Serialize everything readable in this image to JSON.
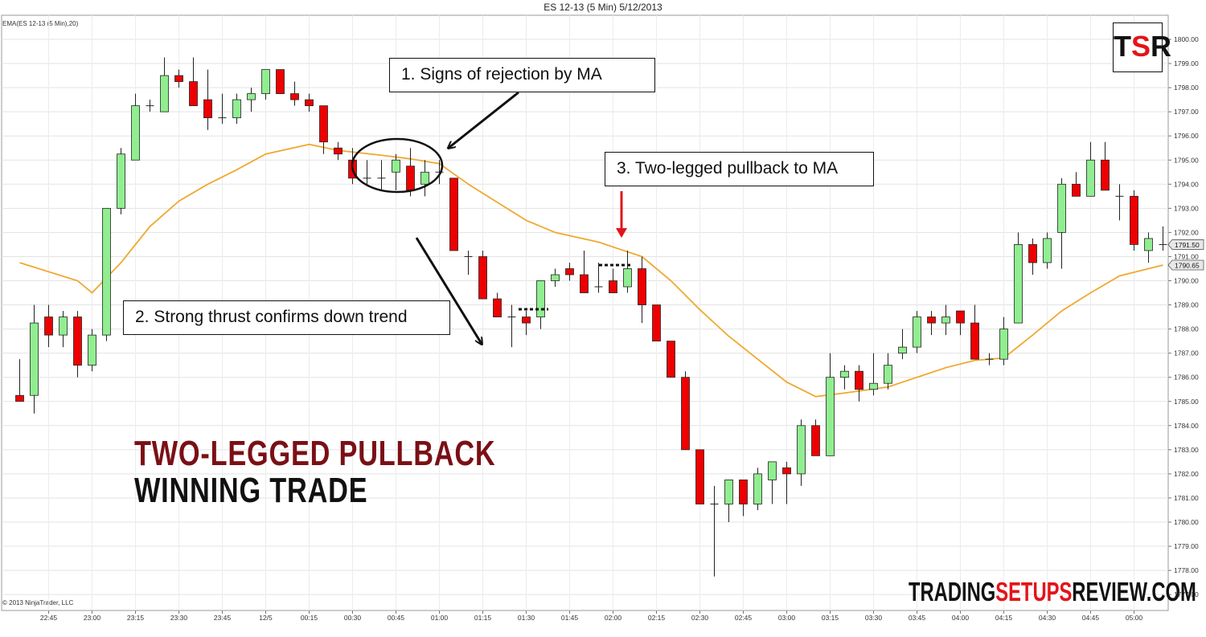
{
  "header": {
    "title": "ES 12-13 (5 Min)  5/12/2013",
    "indicator_label": "EMA(ES 12-13 (5 Min),20)",
    "copyright": "© 2013 NinjaTrader, LLC"
  },
  "annotations": {
    "a1": "1. Signs of rejection by MA",
    "a2": "2. Strong thrust confirms down trend",
    "a3": "3. Two-legged  pullback to MA"
  },
  "overlay": {
    "line1": "TWO-LEGGED PULLBACK",
    "line2": "WINNING TRADE"
  },
  "brand": {
    "part1": "TRADING",
    "part2": "SETUPS",
    "part3": "REVIEW.COM",
    "logo_t": "T",
    "logo_s": "S",
    "logo_r": "R"
  },
  "chart_data": {
    "type": "candlestick",
    "title": "ES 12-13 (5 Min)  5/12/2013",
    "ylim": [
      1776.75,
      1800.5
    ],
    "y_ticks": [
      "1777.00",
      "1778.00",
      "1779.00",
      "1780.00",
      "1781.00",
      "1782.00",
      "1783.00",
      "1784.00",
      "1785.00",
      "1786.00",
      "1787.00",
      "1788.00",
      "1789.00",
      "1790.00",
      "1791.00",
      "1792.00",
      "1793.00",
      "1794.00",
      "1795.00",
      "1796.00",
      "1797.00",
      "1798.00",
      "1799.00",
      "1800.00"
    ],
    "x_ticks": [
      {
        "label": "22:45",
        "index": 2
      },
      {
        "label": "23:00",
        "index": 5
      },
      {
        "label": "23:15",
        "index": 8
      },
      {
        "label": "23:30",
        "index": 11
      },
      {
        "label": "23:45",
        "index": 14
      },
      {
        "label": "12/5",
        "index": 17
      },
      {
        "label": "00:15",
        "index": 20
      },
      {
        "label": "00:30",
        "index": 23
      },
      {
        "label": "00:45",
        "index": 26
      },
      {
        "label": "01:00",
        "index": 29
      },
      {
        "label": "01:15",
        "index": 32
      },
      {
        "label": "01:30",
        "index": 35
      },
      {
        "label": "01:45",
        "index": 38
      },
      {
        "label": "02:00",
        "index": 41
      },
      {
        "label": "02:15",
        "index": 44
      },
      {
        "label": "02:30",
        "index": 47
      },
      {
        "label": "02:45",
        "index": 50
      },
      {
        "label": "03:00",
        "index": 53
      },
      {
        "label": "03:15",
        "index": 56
      },
      {
        "label": "03:30",
        "index": 59
      },
      {
        "label": "03:45",
        "index": 62
      },
      {
        "label": "04:00",
        "index": 65
      },
      {
        "label": "04:15",
        "index": 68
      },
      {
        "label": "04:30",
        "index": 71
      },
      {
        "label": "04:45",
        "index": 74
      },
      {
        "label": "05:00",
        "index": 77
      }
    ],
    "candles": [
      [
        1785.25,
        1786.75,
        1785.0,
        1785.0
      ],
      [
        1785.25,
        1789.0,
        1784.5,
        1788.25
      ],
      [
        1788.5,
        1789.0,
        1787.25,
        1787.75
      ],
      [
        1787.75,
        1788.75,
        1787.25,
        1788.5
      ],
      [
        1788.5,
        1788.75,
        1786.0,
        1786.5
      ],
      [
        1786.5,
        1788.0,
        1786.25,
        1787.75
      ],
      [
        1787.75,
        1793.0,
        1787.5,
        1793.0
      ],
      [
        1793.0,
        1795.5,
        1792.75,
        1795.25
      ],
      [
        1795.0,
        1797.75,
        1795.0,
        1797.25
      ],
      [
        1797.25,
        1797.5,
        1797.0,
        1797.25
      ],
      [
        1797.0,
        1799.25,
        1797.0,
        1798.5
      ],
      [
        1798.5,
        1798.75,
        1798.0,
        1798.25
      ],
      [
        1798.25,
        1799.25,
        1797.25,
        1797.25
      ],
      [
        1797.5,
        1798.75,
        1796.25,
        1796.75
      ],
      [
        1796.75,
        1797.75,
        1796.5,
        1796.75
      ],
      [
        1796.75,
        1797.75,
        1796.5,
        1797.5
      ],
      [
        1797.5,
        1798.0,
        1797.0,
        1797.75
      ],
      [
        1797.75,
        1798.75,
        1797.5,
        1798.75
      ],
      [
        1798.75,
        1798.75,
        1797.75,
        1797.75
      ],
      [
        1797.75,
        1798.25,
        1797.25,
        1797.5
      ],
      [
        1797.5,
        1797.75,
        1797.0,
        1797.25
      ],
      [
        1797.25,
        1797.25,
        1795.25,
        1795.75
      ],
      [
        1795.5,
        1795.75,
        1795.0,
        1795.25
      ],
      [
        1795.0,
        1795.5,
        1794.0,
        1794.25
      ],
      [
        1794.25,
        1795.0,
        1794.0,
        1794.25
      ],
      [
        1794.25,
        1795.0,
        1793.75,
        1794.25
      ],
      [
        1794.5,
        1795.25,
        1793.75,
        1795.0
      ],
      [
        1794.75,
        1795.5,
        1793.5,
        1793.75
      ],
      [
        1794.0,
        1795.0,
        1793.5,
        1794.5
      ],
      [
        1794.5,
        1795.0,
        1794.0,
        1794.5
      ],
      [
        1794.25,
        1794.25,
        1791.25,
        1791.25
      ],
      [
        1791.0,
        1791.25,
        1790.25,
        1791.0
      ],
      [
        1791.0,
        1791.25,
        1789.25,
        1789.25
      ],
      [
        1789.25,
        1789.5,
        1788.5,
        1788.5
      ],
      [
        1788.5,
        1789.0,
        1787.25,
        1788.5
      ],
      [
        1788.5,
        1788.75,
        1787.75,
        1788.25
      ],
      [
        1788.5,
        1790.0,
        1788.0,
        1790.0
      ],
      [
        1790.0,
        1790.5,
        1789.75,
        1790.25
      ],
      [
        1790.5,
        1790.75,
        1790.0,
        1790.25
      ],
      [
        1790.25,
        1791.25,
        1789.5,
        1789.5
      ],
      [
        1789.75,
        1790.75,
        1789.5,
        1789.75
      ],
      [
        1790.0,
        1790.5,
        1789.5,
        1789.5
      ],
      [
        1789.75,
        1791.25,
        1789.5,
        1790.5
      ],
      [
        1790.5,
        1791.0,
        1788.25,
        1789.0
      ],
      [
        1789.0,
        1789.0,
        1787.5,
        1787.5
      ],
      [
        1787.5,
        1787.5,
        1786.0,
        1786.0
      ],
      [
        1786.0,
        1786.25,
        1783.0,
        1783.0
      ],
      [
        1783.0,
        1783.0,
        1780.75,
        1780.75
      ],
      [
        1780.75,
        1781.5,
        1777.75,
        1780.75
      ],
      [
        1780.75,
        1781.75,
        1780.0,
        1781.75
      ],
      [
        1781.75,
        1781.75,
        1780.25,
        1780.75
      ],
      [
        1780.75,
        1782.25,
        1780.5,
        1782.0
      ],
      [
        1781.75,
        1782.5,
        1780.75,
        1782.5
      ],
      [
        1782.25,
        1782.5,
        1780.75,
        1782.0
      ],
      [
        1782.0,
        1784.25,
        1781.5,
        1784.0
      ],
      [
        1784.0,
        1784.25,
        1782.75,
        1782.75
      ],
      [
        1782.75,
        1787.0,
        1782.75,
        1786.0
      ],
      [
        1786.0,
        1786.5,
        1785.5,
        1786.25
      ],
      [
        1786.25,
        1786.5,
        1785.0,
        1785.5
      ],
      [
        1785.5,
        1787.0,
        1785.25,
        1785.75
      ],
      [
        1785.75,
        1787.0,
        1785.5,
        1786.5
      ],
      [
        1787.0,
        1788.0,
        1786.75,
        1787.25
      ],
      [
        1787.25,
        1788.75,
        1787.0,
        1788.5
      ],
      [
        1788.5,
        1788.75,
        1787.75,
        1788.25
      ],
      [
        1788.25,
        1789.0,
        1787.75,
        1788.5
      ],
      [
        1788.75,
        1788.75,
        1787.75,
        1788.25
      ],
      [
        1788.25,
        1789.0,
        1786.75,
        1786.75
      ],
      [
        1786.75,
        1787.0,
        1786.5,
        1786.75
      ],
      [
        1786.75,
        1788.5,
        1786.5,
        1788.0
      ],
      [
        1788.25,
        1792.0,
        1788.25,
        1791.5
      ],
      [
        1791.5,
        1791.75,
        1790.25,
        1790.75
      ],
      [
        1790.75,
        1792.0,
        1790.5,
        1791.75
      ],
      [
        1792.0,
        1794.25,
        1790.5,
        1794.0
      ],
      [
        1794.0,
        1794.5,
        1793.5,
        1793.5
      ],
      [
        1793.5,
        1795.75,
        1793.5,
        1795.0
      ],
      [
        1795.0,
        1795.75,
        1793.75,
        1793.75
      ],
      [
        1793.5,
        1794.0,
        1792.5,
        1793.5
      ],
      [
        1793.5,
        1793.75,
        1791.25,
        1791.5
      ],
      [
        1791.25,
        1792.0,
        1790.75,
        1791.75
      ],
      [
        1791.5,
        1792.25,
        1791.25,
        1791.5
      ]
    ],
    "ema_period": 20,
    "ema": [
      [
        0,
        1790.75
      ],
      [
        4,
        1790.0
      ],
      [
        5,
        1789.5
      ],
      [
        7,
        1790.75
      ],
      [
        9,
        1792.25
      ],
      [
        11,
        1793.3
      ],
      [
        13,
        1794.0
      ],
      [
        15,
        1794.6
      ],
      [
        17,
        1795.25
      ],
      [
        20,
        1795.65
      ],
      [
        22,
        1795.4
      ],
      [
        25,
        1795.2
      ],
      [
        27,
        1795.05
      ],
      [
        29,
        1794.85
      ],
      [
        31,
        1794.0
      ],
      [
        33,
        1793.25
      ],
      [
        35,
        1792.5
      ],
      [
        37,
        1792.0
      ],
      [
        40,
        1791.6
      ],
      [
        43,
        1791.0
      ],
      [
        45,
        1790.0
      ],
      [
        47,
        1788.8
      ],
      [
        49,
        1787.7
      ],
      [
        51,
        1786.75
      ],
      [
        53,
        1785.8
      ],
      [
        55,
        1785.2
      ],
      [
        57,
        1785.35
      ],
      [
        60,
        1785.6
      ],
      [
        62,
        1786.0
      ],
      [
        64,
        1786.4
      ],
      [
        66,
        1786.7
      ],
      [
        68,
        1786.8
      ],
      [
        70,
        1787.75
      ],
      [
        72,
        1788.75
      ],
      [
        74,
        1789.5
      ],
      [
        76,
        1790.2
      ],
      [
        79,
        1790.65
      ]
    ],
    "price_markers": [
      "1791.50",
      "1790.65"
    ]
  }
}
